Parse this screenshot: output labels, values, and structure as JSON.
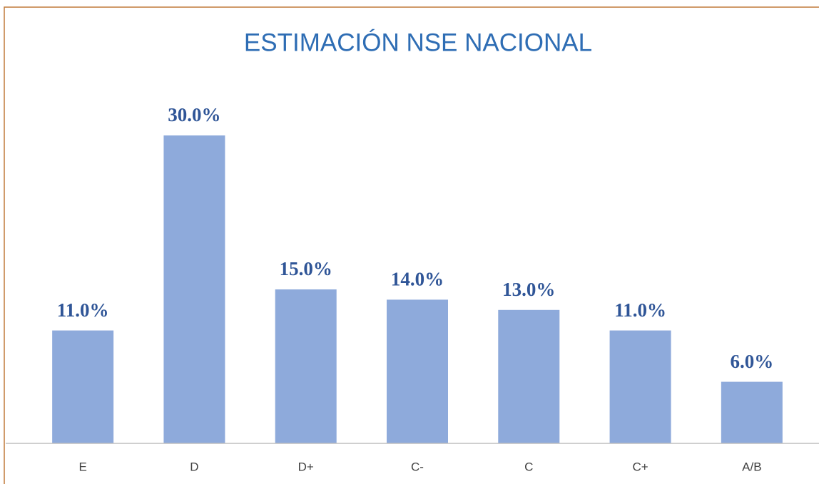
{
  "chart_data": {
    "type": "bar",
    "title": "ESTIMACIÓN NSE NACIONAL",
    "categories": [
      "E",
      "D",
      "D+",
      "C-",
      "C",
      "C+",
      "A/B"
    ],
    "values": [
      11,
      30,
      15,
      14,
      13,
      11,
      6
    ],
    "value_labels": [
      "11.0%",
      "30.0%",
      "15.0%",
      "14.0%",
      "13.0%",
      "11.0%",
      "6.0%"
    ],
    "color": "#8eaadb"
  }
}
